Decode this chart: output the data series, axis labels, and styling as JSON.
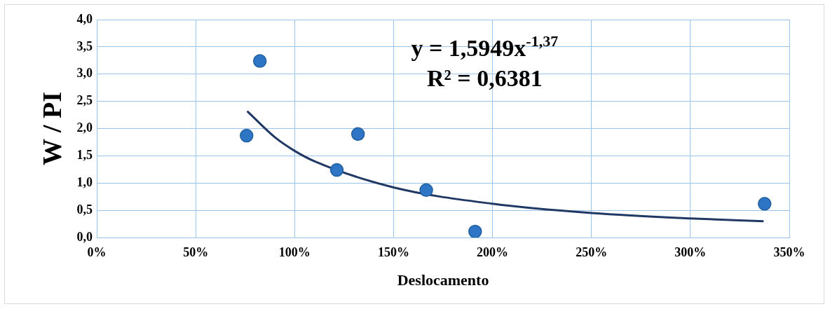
{
  "chart_data": {
    "type": "scatter",
    "xlabel": "Deslocamento",
    "ylabel": "W / PI",
    "series": [
      {
        "color": "#2e75c6",
        "x": [
          75.7,
          82.4,
          121.3,
          132,
          166.5,
          191.2,
          337.5
        ],
        "values": [
          1.87,
          3.24,
          1.24,
          1.9,
          0.87,
          0.11,
          0.62
        ]
      },
      {
        "type": "line",
        "color": "#203864",
        "marker": "none",
        "x": [
          76,
          90,
          100,
          110,
          150,
          200,
          250,
          300,
          337
        ],
        "values": [
          2.32,
          1.84,
          1.59,
          1.4,
          0.92,
          0.62,
          0.45,
          0.35,
          0.3
        ]
      }
    ],
    "xlim": [
      0,
      350
    ],
    "xticks": [
      {
        "value": 0,
        "label": "0%"
      },
      {
        "value": 50,
        "label": "50%"
      },
      {
        "value": 100,
        "label": "100%"
      },
      {
        "value": 150,
        "label": "150%"
      },
      {
        "value": 200,
        "label": "200%"
      },
      {
        "value": 250,
        "label": "250%"
      },
      {
        "value": 300,
        "label": "300%"
      },
      {
        "value": 350,
        "label": "350%"
      }
    ],
    "ylim": [
      0,
      4
    ],
    "yticks": [
      {
        "value": 0,
        "label": "0,0"
      },
      {
        "value": 0.5,
        "label": "0,5"
      },
      {
        "value": 1,
        "label": "1,0"
      },
      {
        "value": 1.5,
        "label": "1,5"
      },
      {
        "value": 2,
        "label": "2,0"
      },
      {
        "value": 2.5,
        "label": "2,5"
      },
      {
        "value": 3,
        "label": "3,0"
      },
      {
        "value": 3.5,
        "label": "3,5"
      },
      {
        "value": 4,
        "label": "4,0"
      }
    ],
    "annotations": [
      "y = 1,5949x$^{-1,37}$",
      "R² = 0,6381"
    ],
    "grid": true,
    "legend": false,
    "marker": "circle"
  }
}
